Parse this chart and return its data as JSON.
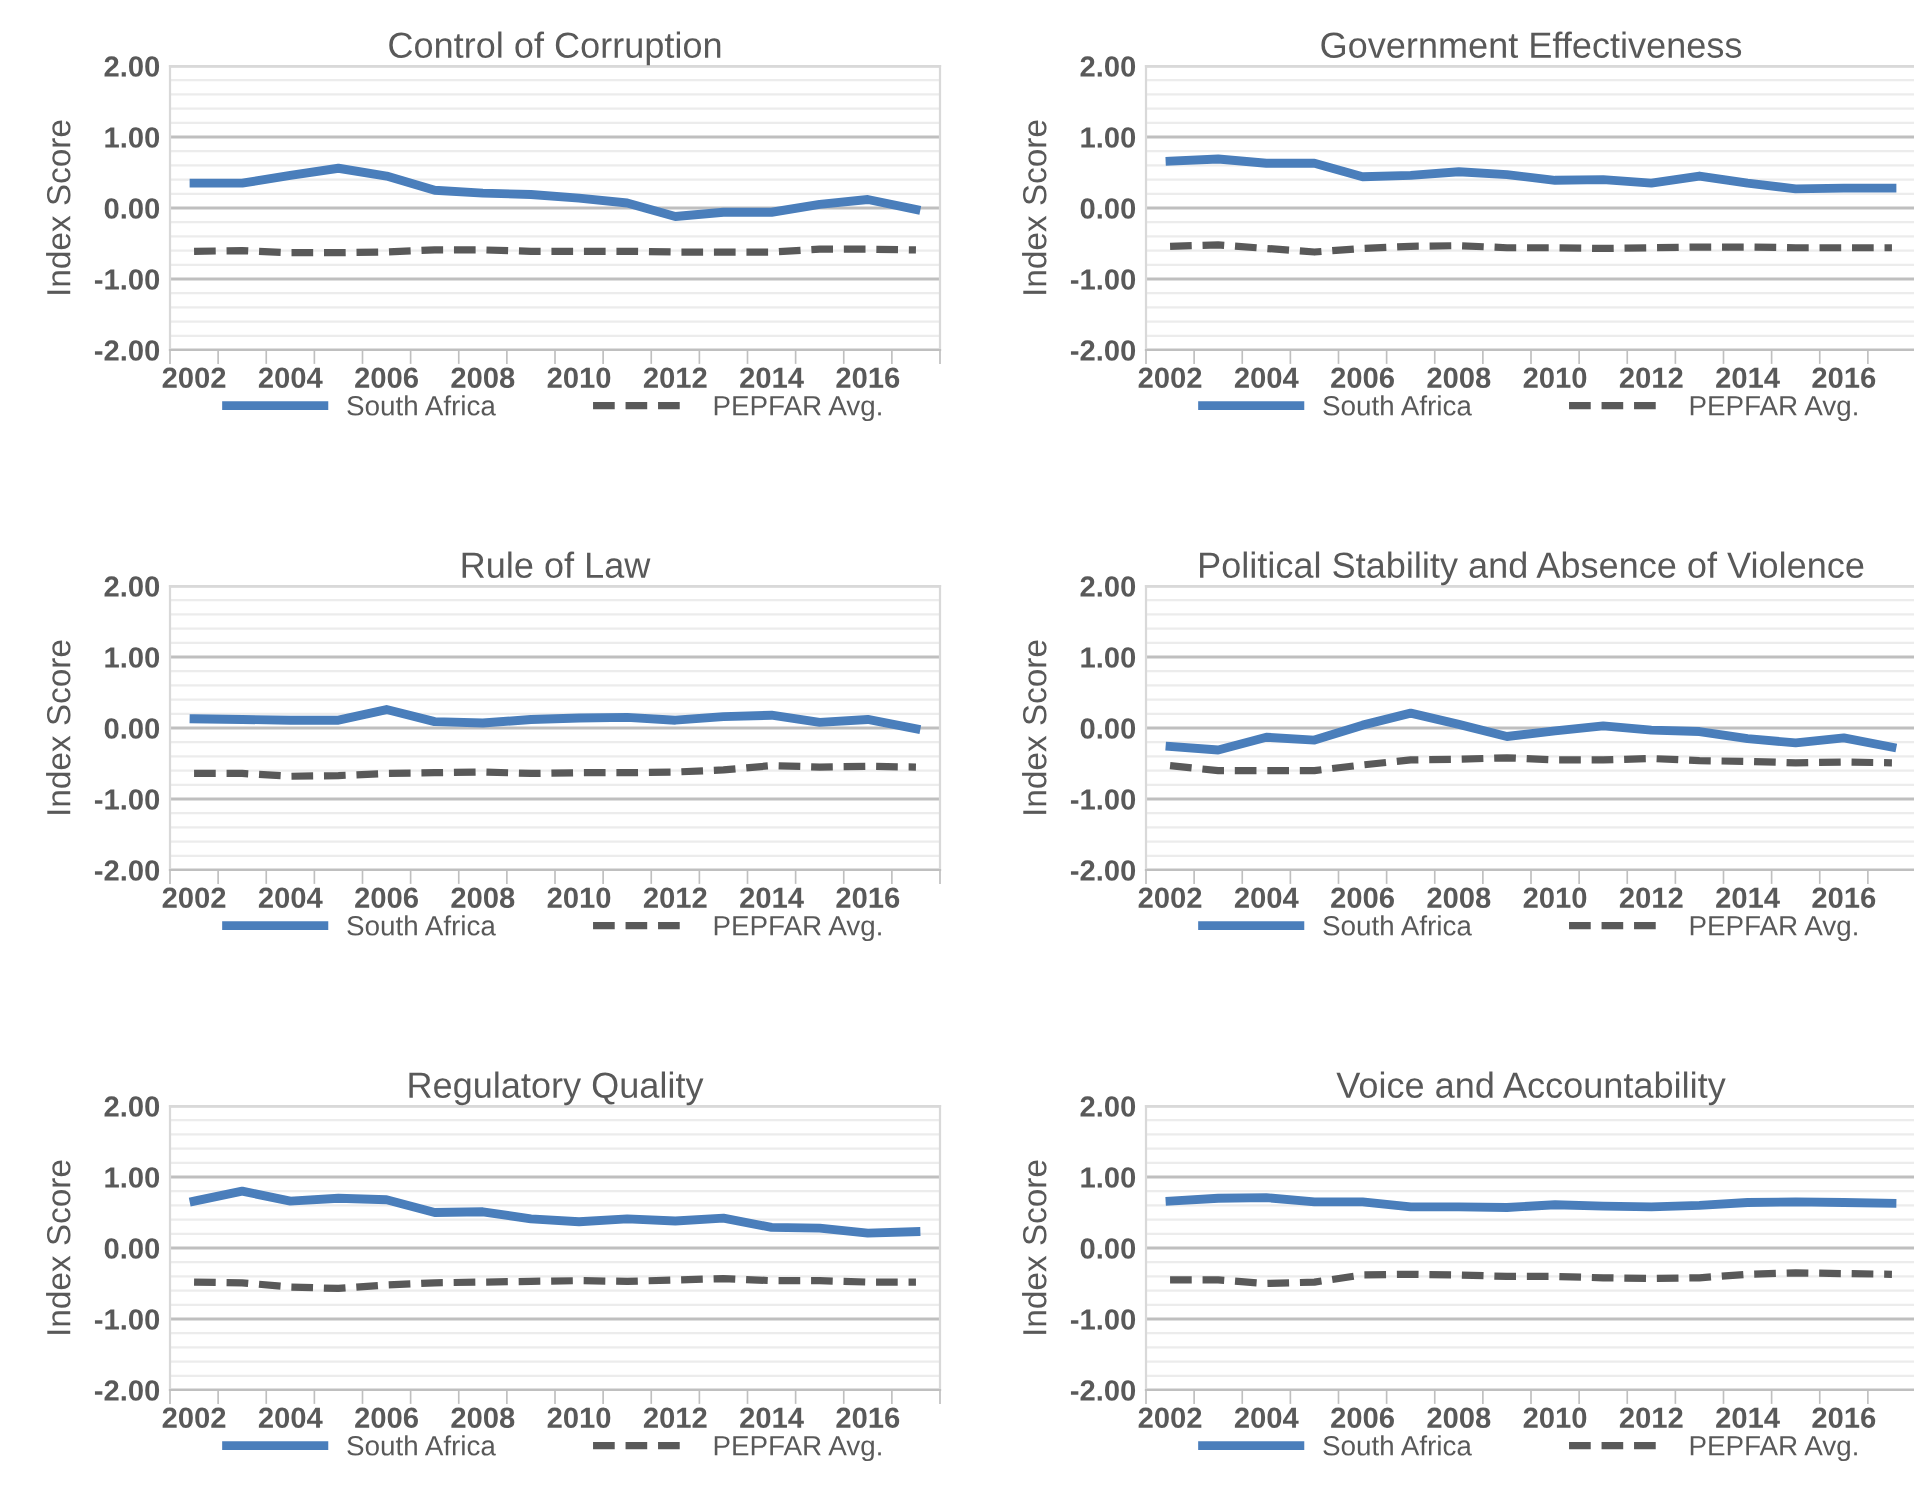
{
  "chart_data": [
    {
      "type": "line",
      "title": "Control of Corruption",
      "ylabel": "Index Score",
      "categories": [
        "2002",
        null,
        "2004",
        null,
        "2006",
        null,
        "2008",
        null,
        "2010",
        null,
        "2012",
        null,
        "2014",
        null,
        "2016",
        null
      ],
      "ylim": [
        -2,
        2
      ],
      "yticks": [
        {
          "value": -2,
          "label": "-2.00"
        },
        {
          "value": -1.8,
          "label": null
        },
        {
          "value": -1.6,
          "label": null
        },
        {
          "value": -1.4,
          "label": null
        },
        {
          "value": -1.2,
          "label": null
        },
        {
          "value": -1,
          "label": "-1.00"
        },
        {
          "value": -0.8,
          "label": null
        },
        {
          "value": -0.6,
          "label": null
        },
        {
          "value": -0.4,
          "label": null
        },
        {
          "value": -0.2,
          "label": null
        },
        {
          "value": 0,
          "label": "0.00"
        },
        {
          "value": 0.2,
          "label": null
        },
        {
          "value": 0.4,
          "label": null
        },
        {
          "value": 0.6,
          "label": null
        },
        {
          "value": 0.8,
          "label": null
        },
        {
          "value": 1,
          "label": "1.00"
        },
        {
          "value": 1.2,
          "label": null
        },
        {
          "value": 1.4,
          "label": null
        },
        {
          "value": 1.6,
          "label": null
        },
        {
          "value": 1.8,
          "label": null
        },
        {
          "value": 2,
          "label": "2.00"
        }
      ],
      "grid": "y",
      "legend": "bottom",
      "series": [
        {
          "name": "South Africa",
          "color": "#4a7ebb",
          "line_style": "solid",
          "values": [
            0.35,
            0.35,
            0.46,
            0.56,
            0.45,
            0.25,
            0.21,
            0.19,
            0.14,
            0.07,
            -0.12,
            -0.06,
            -0.06,
            0.05,
            0.12,
            -0.02
          ]
        },
        {
          "name": "PEPFAR Avg.",
          "color": "#595959",
          "line_style": "dashed",
          "values": [
            -0.61,
            -0.6,
            -0.63,
            -0.63,
            -0.62,
            -0.59,
            -0.59,
            -0.61,
            -0.61,
            -0.61,
            -0.62,
            -0.62,
            -0.62,
            -0.58,
            -0.58,
            -0.59
          ]
        }
      ]
    },
    {
      "type": "line",
      "title": "Government Effectiveness",
      "ylabel": "Index Score",
      "categories": [
        "2002",
        null,
        "2004",
        null,
        "2006",
        null,
        "2008",
        null,
        "2010",
        null,
        "2012",
        null,
        "2014",
        null,
        "2016",
        null
      ],
      "ylim": [
        -2,
        2
      ],
      "yticks": [
        {
          "value": -2,
          "label": "-2.00"
        },
        {
          "value": -1.8,
          "label": null
        },
        {
          "value": -1.6,
          "label": null
        },
        {
          "value": -1.4,
          "label": null
        },
        {
          "value": -1.2,
          "label": null
        },
        {
          "value": -1,
          "label": "-1.00"
        },
        {
          "value": -0.8,
          "label": null
        },
        {
          "value": -0.6,
          "label": null
        },
        {
          "value": -0.4,
          "label": null
        },
        {
          "value": -0.2,
          "label": null
        },
        {
          "value": 0,
          "label": "0.00"
        },
        {
          "value": 0.2,
          "label": null
        },
        {
          "value": 0.4,
          "label": null
        },
        {
          "value": 0.6,
          "label": null
        },
        {
          "value": 0.8,
          "label": null
        },
        {
          "value": 1,
          "label": "1.00"
        },
        {
          "value": 1.2,
          "label": null
        },
        {
          "value": 1.4,
          "label": null
        },
        {
          "value": 1.6,
          "label": null
        },
        {
          "value": 1.8,
          "label": null
        },
        {
          "value": 2,
          "label": "2.00"
        }
      ],
      "grid": "y",
      "legend": "bottom",
      "series": [
        {
          "name": "South Africa",
          "color": "#4a7ebb",
          "line_style": "solid",
          "values": [
            0.66,
            0.69,
            0.63,
            0.63,
            0.44,
            0.46,
            0.51,
            0.47,
            0.39,
            0.4,
            0.35,
            0.45,
            0.35,
            0.27,
            0.28,
            0.28
          ]
        },
        {
          "name": "PEPFAR Avg.",
          "color": "#595959",
          "line_style": "dashed",
          "values": [
            -0.54,
            -0.52,
            -0.57,
            -0.62,
            -0.57,
            -0.54,
            -0.53,
            -0.56,
            -0.56,
            -0.57,
            -0.56,
            -0.55,
            -0.55,
            -0.56,
            -0.56,
            -0.56
          ]
        }
      ]
    },
    {
      "type": "line",
      "title": "Rule of Law",
      "ylabel": "Index Score",
      "categories": [
        "2002",
        null,
        "2004",
        null,
        "2006",
        null,
        "2008",
        null,
        "2010",
        null,
        "2012",
        null,
        "2014",
        null,
        "2016",
        null
      ],
      "ylim": [
        -2,
        2
      ],
      "yticks": [
        {
          "value": -2,
          "label": "-2.00"
        },
        {
          "value": -1.8,
          "label": null
        },
        {
          "value": -1.6,
          "label": null
        },
        {
          "value": -1.4,
          "label": null
        },
        {
          "value": -1.2,
          "label": null
        },
        {
          "value": -1,
          "label": "-1.00"
        },
        {
          "value": -0.8,
          "label": null
        },
        {
          "value": -0.6,
          "label": null
        },
        {
          "value": -0.4,
          "label": null
        },
        {
          "value": -0.2,
          "label": null
        },
        {
          "value": 0,
          "label": "0.00"
        },
        {
          "value": 0.2,
          "label": null
        },
        {
          "value": 0.4,
          "label": null
        },
        {
          "value": 0.6,
          "label": null
        },
        {
          "value": 0.8,
          "label": null
        },
        {
          "value": 1,
          "label": "1.00"
        },
        {
          "value": 1.2,
          "label": null
        },
        {
          "value": 1.4,
          "label": null
        },
        {
          "value": 1.6,
          "label": null
        },
        {
          "value": 1.8,
          "label": null
        },
        {
          "value": 2,
          "label": "2.00"
        }
      ],
      "grid": "y",
      "legend": "bottom",
      "series": [
        {
          "name": "South Africa",
          "color": "#4a7ebb",
          "line_style": "solid",
          "values": [
            0.13,
            0.12,
            0.11,
            0.11,
            0.26,
            0.09,
            0.07,
            0.12,
            0.14,
            0.15,
            0.11,
            0.16,
            0.18,
            0.08,
            0.12,
            -0.01
          ]
        },
        {
          "name": "PEPFAR Avg.",
          "color": "#595959",
          "line_style": "dashed",
          "values": [
            -0.64,
            -0.64,
            -0.68,
            -0.67,
            -0.64,
            -0.63,
            -0.62,
            -0.64,
            -0.63,
            -0.63,
            -0.62,
            -0.59,
            -0.53,
            -0.55,
            -0.54,
            -0.55
          ]
        }
      ]
    },
    {
      "type": "line",
      "title": "Political Stability and Absence of Violence",
      "ylabel": "Index Score",
      "categories": [
        "2002",
        null,
        "2004",
        null,
        "2006",
        null,
        "2008",
        null,
        "2010",
        null,
        "2012",
        null,
        "2014",
        null,
        "2016",
        null
      ],
      "ylim": [
        -2,
        2
      ],
      "yticks": [
        {
          "value": -2,
          "label": "-2.00"
        },
        {
          "value": -1.8,
          "label": null
        },
        {
          "value": -1.6,
          "label": null
        },
        {
          "value": -1.4,
          "label": null
        },
        {
          "value": -1.2,
          "label": null
        },
        {
          "value": -1,
          "label": "-1.00"
        },
        {
          "value": -0.8,
          "label": null
        },
        {
          "value": -0.6,
          "label": null
        },
        {
          "value": -0.4,
          "label": null
        },
        {
          "value": -0.2,
          "label": null
        },
        {
          "value": 0,
          "label": "0.00"
        },
        {
          "value": 0.2,
          "label": null
        },
        {
          "value": 0.4,
          "label": null
        },
        {
          "value": 0.6,
          "label": null
        },
        {
          "value": 0.8,
          "label": null
        },
        {
          "value": 1,
          "label": "1.00"
        },
        {
          "value": 1.2,
          "label": null
        },
        {
          "value": 1.4,
          "label": null
        },
        {
          "value": 1.6,
          "label": null
        },
        {
          "value": 1.8,
          "label": null
        },
        {
          "value": 2,
          "label": "2.00"
        }
      ],
      "grid": "y",
      "legend": "bottom",
      "series": [
        {
          "name": "South Africa",
          "color": "#4a7ebb",
          "line_style": "solid",
          "values": [
            -0.26,
            -0.31,
            -0.13,
            -0.17,
            0.04,
            0.21,
            0.05,
            -0.12,
            -0.04,
            0.03,
            -0.03,
            -0.05,
            -0.15,
            -0.21,
            -0.14,
            -0.27
          ]
        },
        {
          "name": "PEPFAR Avg.",
          "color": "#595959",
          "line_style": "dashed",
          "values": [
            -0.53,
            -0.6,
            -0.6,
            -0.6,
            -0.52,
            -0.45,
            -0.44,
            -0.42,
            -0.45,
            -0.45,
            -0.43,
            -0.46,
            -0.47,
            -0.49,
            -0.48,
            -0.49
          ]
        }
      ]
    },
    {
      "type": "line",
      "title": "Regulatory Quality",
      "ylabel": "Index Score",
      "categories": [
        "2002",
        null,
        "2004",
        null,
        "2006",
        null,
        "2008",
        null,
        "2010",
        null,
        "2012",
        null,
        "2014",
        null,
        "2016",
        null
      ],
      "ylim": [
        -2,
        2
      ],
      "yticks": [
        {
          "value": -2,
          "label": "-2.00"
        },
        {
          "value": -1.8,
          "label": null
        },
        {
          "value": -1.6,
          "label": null
        },
        {
          "value": -1.4,
          "label": null
        },
        {
          "value": -1.2,
          "label": null
        },
        {
          "value": -1,
          "label": "-1.00"
        },
        {
          "value": -0.8,
          "label": null
        },
        {
          "value": -0.6,
          "label": null
        },
        {
          "value": -0.4,
          "label": null
        },
        {
          "value": -0.2,
          "label": null
        },
        {
          "value": 0,
          "label": "0.00"
        },
        {
          "value": 0.2,
          "label": null
        },
        {
          "value": 0.4,
          "label": null
        },
        {
          "value": 0.6,
          "label": null
        },
        {
          "value": 0.8,
          "label": null
        },
        {
          "value": 1,
          "label": "1.00"
        },
        {
          "value": 1.2,
          "label": null
        },
        {
          "value": 1.4,
          "label": null
        },
        {
          "value": 1.6,
          "label": null
        },
        {
          "value": 1.8,
          "label": null
        },
        {
          "value": 2,
          "label": "2.00"
        }
      ],
      "grid": "y",
      "legend": "bottom",
      "series": [
        {
          "name": "South Africa",
          "color": "#4a7ebb",
          "line_style": "solid",
          "values": [
            0.66,
            0.8,
            0.66,
            0.7,
            0.68,
            0.5,
            0.51,
            0.41,
            0.37,
            0.41,
            0.38,
            0.42,
            0.29,
            0.28,
            0.21,
            0.23
          ]
        },
        {
          "name": "PEPFAR Avg.",
          "color": "#595959",
          "line_style": "dashed",
          "values": [
            -0.48,
            -0.49,
            -0.55,
            -0.57,
            -0.52,
            -0.49,
            -0.48,
            -0.47,
            -0.46,
            -0.47,
            -0.45,
            -0.43,
            -0.46,
            -0.46,
            -0.48,
            -0.48
          ]
        }
      ]
    },
    {
      "type": "line",
      "title": "Voice and Accountability",
      "ylabel": "Index Score",
      "categories": [
        "2002",
        null,
        "2004",
        null,
        "2006",
        null,
        "2008",
        null,
        "2010",
        null,
        "2012",
        null,
        "2014",
        null,
        "2016",
        null
      ],
      "ylim": [
        -2,
        2
      ],
      "yticks": [
        {
          "value": -2,
          "label": "-2.00"
        },
        {
          "value": -1.8,
          "label": null
        },
        {
          "value": -1.6,
          "label": null
        },
        {
          "value": -1.4,
          "label": null
        },
        {
          "value": -1.2,
          "label": null
        },
        {
          "value": -1,
          "label": "-1.00"
        },
        {
          "value": -0.8,
          "label": null
        },
        {
          "value": -0.6,
          "label": null
        },
        {
          "value": -0.4,
          "label": null
        },
        {
          "value": -0.2,
          "label": null
        },
        {
          "value": 0,
          "label": "0.00"
        },
        {
          "value": 0.2,
          "label": null
        },
        {
          "value": 0.4,
          "label": null
        },
        {
          "value": 0.6,
          "label": null
        },
        {
          "value": 0.8,
          "label": null
        },
        {
          "value": 1,
          "label": "1.00"
        },
        {
          "value": 1.2,
          "label": null
        },
        {
          "value": 1.4,
          "label": null
        },
        {
          "value": 1.6,
          "label": null
        },
        {
          "value": 1.8,
          "label": null
        },
        {
          "value": 2,
          "label": "2.00"
        }
      ],
      "grid": "y",
      "legend": "bottom",
      "series": [
        {
          "name": "South Africa",
          "color": "#4a7ebb",
          "line_style": "solid",
          "values": [
            0.66,
            0.7,
            0.71,
            0.65,
            0.65,
            0.58,
            0.58,
            0.57,
            0.61,
            0.59,
            0.58,
            0.6,
            0.64,
            0.65,
            0.64,
            0.63
          ]
        },
        {
          "name": "PEPFAR Avg.",
          "color": "#595959",
          "line_style": "dashed",
          "values": [
            -0.45,
            -0.45,
            -0.5,
            -0.48,
            -0.38,
            -0.37,
            -0.38,
            -0.4,
            -0.4,
            -0.42,
            -0.43,
            -0.42,
            -0.37,
            -0.35,
            -0.36,
            -0.37
          ]
        }
      ]
    }
  ]
}
